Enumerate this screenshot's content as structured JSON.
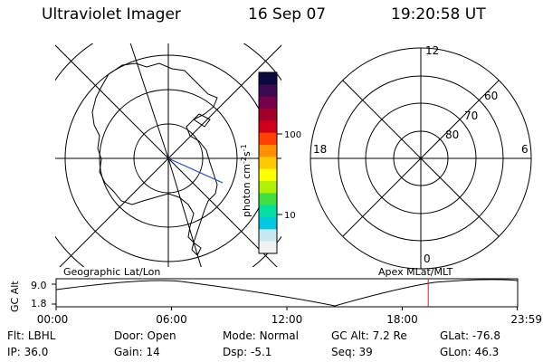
{
  "header": {
    "instrument": "Ultraviolet Imager",
    "date": "16 Sep 07",
    "time": "19:20:58 UT"
  },
  "colorbar": {
    "unit_label": "photon cm",
    "unit_sup1": "-2",
    "unit_mid": "s",
    "unit_sup2": "-1",
    "ticks": [
      {
        "label": "100",
        "value": 100
      },
      {
        "label": "10",
        "value": 10
      }
    ],
    "colors": [
      "#0a0a40",
      "#3c0a50",
      "#78004a",
      "#a0002a",
      "#d0001a",
      "#ff4000",
      "#ff9000",
      "#ffc800",
      "#ffff00",
      "#b0f000",
      "#40e040",
      "#00e0a0",
      "#00c8e0",
      "#c8e8f0",
      "#f0f0f0"
    ]
  },
  "geo_map": {
    "title": "Geographic Lat/Lon"
  },
  "apex_map": {
    "title": "Apex MLat/MLT",
    "clock_labels": {
      "top": "12",
      "left": "18",
      "right": "6",
      "bottom": "0"
    },
    "lat_labels": [
      "60",
      "70",
      "80"
    ]
  },
  "altitude_plot": {
    "ylabel": "GC Alt",
    "y_ticks": [
      "9.0",
      "1.8"
    ],
    "x_ticks": [
      "00:00",
      "06:00",
      "12:00",
      "18:00",
      "23:59"
    ],
    "current_time_hours": 19.35,
    "curve_color": "#000000",
    "marker_color": "#cc2222"
  },
  "status": {
    "row1": [
      {
        "label": "Flt:",
        "value": "LBHL"
      },
      {
        "label": "Door:",
        "value": "Open"
      },
      {
        "label": "Mode:",
        "value": "Normal"
      },
      {
        "label": "GC Alt:",
        "value": "7.2 Re"
      },
      {
        "label": "GLat:",
        "value": "-76.8"
      }
    ],
    "row2": [
      {
        "label": "IP:",
        "value": "36.0"
      },
      {
        "label": "Gain:",
        "value": "14"
      },
      {
        "label": "Dsp:",
        "value": "-5.1"
      },
      {
        "label": "Seq:",
        "value": "39"
      },
      {
        "label": "GLon:",
        "value": "46.3"
      }
    ]
  }
}
